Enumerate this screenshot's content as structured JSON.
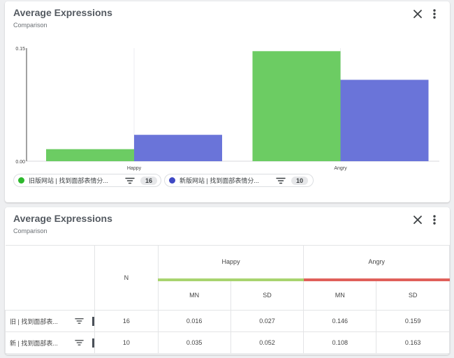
{
  "chart_card": {
    "title": "Average Expressions",
    "subtitle": "Comparison"
  },
  "chart_data": {
    "type": "bar",
    "categories": [
      "Happy",
      "Angry"
    ],
    "series": [
      {
        "name": "旧版网站 | 找到面部表情分析",
        "color": "#6ccc63",
        "values": [
          0.016,
          0.146
        ]
      },
      {
        "name": "新版网站 | 找到面部表情分析",
        "color": "#6a74d9",
        "values": [
          0.035,
          0.108
        ]
      }
    ],
    "ylim": [
      0.0,
      0.15
    ],
    "y_tick_labels": [
      "0.00",
      "0.15"
    ],
    "xlabel": "",
    "ylabel": "",
    "legend_position": "bottom-left"
  },
  "legend": [
    {
      "label": "旧版网站 | 找到面部表情分...",
      "count": "16",
      "color": "#2db82d"
    },
    {
      "label": "新版网站 | 找到面部表情分...",
      "count": "10",
      "color": "#3f49c4"
    }
  ],
  "table_card": {
    "title": "Average Expressions",
    "subtitle": "Comparison",
    "n_header": "N",
    "groups": [
      {
        "label": "Happy",
        "color": "#a8d46f"
      },
      {
        "label": "Angry",
        "color": "#e0605a"
      }
    ],
    "sub_headers": [
      "MN",
      "SD",
      "MN",
      "SD"
    ],
    "rows": [
      {
        "label": "旧 | 找到面部表...",
        "n": "16",
        "cells": [
          "0.016",
          "0.027",
          "0.146",
          "0.159"
        ]
      },
      {
        "label": "新 | 找到面部表...",
        "n": "10",
        "cells": [
          "0.035",
          "0.052",
          "0.108",
          "0.163"
        ]
      }
    ]
  },
  "icons": {
    "close": "close-icon",
    "more": "more-vertical-icon",
    "filter": "filter-icon"
  }
}
